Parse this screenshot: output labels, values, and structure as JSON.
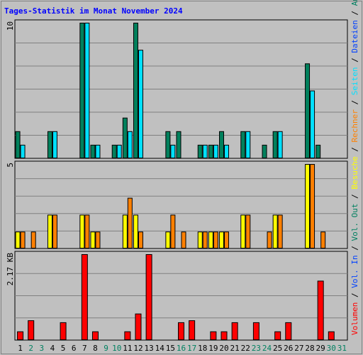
{
  "chart_data": [
    {
      "type": "bar",
      "title": "Tages-Statistik im Monat November 2024",
      "ymax_label": "10",
      "ylim": [
        0,
        10
      ],
      "categories": [
        "1",
        "2",
        "3",
        "4",
        "5",
        "6",
        "7",
        "8",
        "9",
        "10",
        "11",
        "12",
        "13",
        "14",
        "15",
        "16",
        "17",
        "18",
        "19",
        "20",
        "21",
        "22",
        "23",
        "24",
        "25",
        "26",
        "27",
        "28",
        "29",
        "30",
        "31"
      ],
      "series": [
        {
          "name": "Anfragen",
          "color": "#00805c",
          "values": [
            2,
            0,
            0,
            2,
            0,
            0,
            10,
            1,
            0,
            1,
            3,
            10,
            0,
            0,
            2,
            2,
            0,
            1,
            1,
            2,
            0,
            2,
            0,
            1,
            2,
            0,
            0,
            7,
            1,
            0,
            0
          ]
        },
        {
          "name": "Dateien",
          "color": "#00e0ff",
          "values": [
            1,
            0,
            0,
            2,
            0,
            0,
            10,
            1,
            0,
            1,
            2,
            8,
            0,
            0,
            1,
            0,
            0,
            1,
            1,
            1,
            0,
            2,
            0,
            0,
            2,
            0,
            0,
            5,
            0,
            0,
            0
          ]
        }
      ]
    },
    {
      "type": "bar",
      "ymax_label": "5",
      "ylim": [
        0,
        5
      ],
      "categories": [
        "1",
        "2",
        "3",
        "4",
        "5",
        "6",
        "7",
        "8",
        "9",
        "10",
        "11",
        "12",
        "13",
        "14",
        "15",
        "16",
        "17",
        "18",
        "19",
        "20",
        "21",
        "22",
        "23",
        "24",
        "25",
        "26",
        "27",
        "28",
        "29",
        "30",
        "31"
      ],
      "series": [
        {
          "name": "Besuche",
          "color": "#ffff00",
          "values": [
            1,
            0,
            0,
            2,
            0,
            0,
            2,
            1,
            0,
            0,
            2,
            2,
            0,
            0,
            1,
            0,
            0,
            1,
            1,
            1,
            0,
            2,
            0,
            0,
            2,
            0,
            0,
            5,
            0,
            0,
            0
          ]
        },
        {
          "name": "Rechner",
          "color": "#ff8000",
          "values": [
            1,
            1,
            0,
            2,
            0,
            0,
            2,
            1,
            0,
            0,
            3,
            1,
            0,
            0,
            2,
            1,
            0,
            1,
            1,
            1,
            0,
            2,
            0,
            1,
            2,
            0,
            0,
            5,
            1,
            0,
            0
          ]
        }
      ]
    },
    {
      "type": "bar",
      "ymax_label": "2.17 KB",
      "ylim": [
        0,
        2.17
      ],
      "categories": [
        "1",
        "2",
        "3",
        "4",
        "5",
        "6",
        "7",
        "8",
        "9",
        "10",
        "11",
        "12",
        "13",
        "14",
        "15",
        "16",
        "17",
        "18",
        "19",
        "20",
        "21",
        "22",
        "23",
        "24",
        "25",
        "26",
        "27",
        "28",
        "29",
        "30",
        "31"
      ],
      "series": [
        {
          "name": "Volumen",
          "color": "#ff0000",
          "values": [
            0.22,
            0.5,
            0,
            0,
            0.45,
            0,
            2.17,
            0.22,
            0,
            0,
            0.22,
            0.67,
            2.17,
            0,
            0,
            0.45,
            0.5,
            0,
            0.22,
            0.22,
            0.45,
            0,
            0.45,
            0,
            0.22,
            0.45,
            0,
            0,
            1.5,
            0.22,
            0
          ]
        }
      ]
    }
  ],
  "day_label_colors": {
    "weekday": "#000000",
    "weekend": "#008060"
  },
  "weekend_days": [
    "2",
    "3",
    "9",
    "10",
    "16",
    "17",
    "23",
    "24",
    "30",
    "31"
  ],
  "legend": {
    "items": [
      {
        "label": "Volumen",
        "color": "#ff0000"
      },
      {
        "label": "Vol. In",
        "color": "#0040ff"
      },
      {
        "label": "Vol. Out",
        "color": "#008060"
      },
      {
        "label": "Besuche",
        "color": "#ffff00"
      },
      {
        "label": "Rechner",
        "color": "#ff8000"
      },
      {
        "label": "Seiten",
        "color": "#00e0ff"
      },
      {
        "label": "Dateien",
        "color": "#0040ff"
      },
      {
        "label": "Anfragen",
        "color": "#008060"
      }
    ],
    "separator": "/"
  },
  "colors": {
    "background": "#c0c0c0",
    "gridline": "#808080",
    "title": "#0000ff"
  }
}
